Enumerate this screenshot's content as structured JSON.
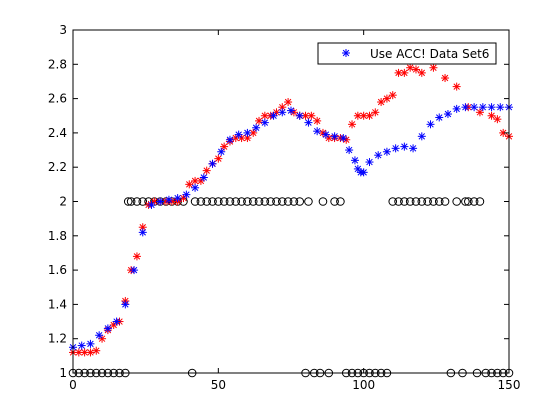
{
  "chart_data": {
    "type": "scatter",
    "title": "",
    "xlabel": "",
    "ylabel": "",
    "xlim": [
      0,
      150
    ],
    "ylim": [
      1,
      3
    ],
    "x_ticks": [
      0,
      50,
      100,
      150
    ],
    "x_tick_labels": [
      "0",
      "50",
      "100",
      "150"
    ],
    "y_ticks": [
      1,
      1.2,
      1.4,
      1.6,
      1.8,
      2,
      2.2,
      2.4,
      2.6,
      2.8,
      3
    ],
    "y_tick_labels": [
      "1",
      "1.2",
      "1.4",
      "1.6",
      "1.8",
      "2",
      "2.2",
      "2.4",
      "2.6",
      "2.8",
      "3"
    ],
    "grid": false,
    "legend": {
      "position": "top-right",
      "entries": [
        "Use ACC! Data Set6"
      ]
    },
    "series": [
      {
        "name": "Use ACC! Data Set6",
        "marker": "asterisk",
        "color": "#0000ff",
        "x": [
          0,
          3,
          6,
          9,
          12,
          15,
          18,
          21,
          24,
          27,
          30,
          33,
          36,
          39,
          42,
          45,
          48,
          51,
          54,
          57,
          60,
          63,
          66,
          69,
          72,
          75,
          78,
          81,
          84,
          87,
          90,
          93,
          95,
          97,
          98,
          99,
          100,
          102,
          105,
          108,
          111,
          114,
          117,
          120,
          123,
          126,
          129,
          132,
          135,
          138,
          141,
          144,
          147,
          150
        ],
        "y": [
          1.15,
          1.16,
          1.17,
          1.22,
          1.26,
          1.3,
          1.4,
          1.6,
          1.82,
          1.98,
          2.0,
          2.01,
          2.02,
          2.04,
          2.08,
          2.14,
          2.22,
          2.29,
          2.36,
          2.39,
          2.4,
          2.43,
          2.46,
          2.5,
          2.52,
          2.53,
          2.5,
          2.46,
          2.41,
          2.39,
          2.38,
          2.37,
          2.3,
          2.24,
          2.19,
          2.17,
          2.17,
          2.23,
          2.27,
          2.29,
          2.31,
          2.32,
          2.31,
          2.38,
          2.45,
          2.49,
          2.51,
          2.54,
          2.55,
          2.55,
          2.55,
          2.55,
          2.55,
          2.55
        ]
      },
      {
        "name": "",
        "marker": "asterisk",
        "color": "#ff0000",
        "x": [
          0,
          2,
          4,
          6,
          8,
          10,
          12,
          14,
          16,
          18,
          20,
          22,
          24,
          26,
          28,
          30,
          32,
          34,
          36,
          38,
          40,
          42,
          44,
          46,
          48,
          50,
          52,
          54,
          56,
          58,
          60,
          62,
          64,
          66,
          68,
          70,
          72,
          74,
          76,
          78,
          80,
          82,
          84,
          86,
          88,
          90,
          92,
          94,
          96,
          98,
          100,
          102,
          104,
          106,
          108,
          110,
          112,
          114,
          116,
          118,
          120,
          124,
          128,
          132,
          136,
          140,
          144,
          146,
          148,
          150
        ],
        "y": [
          1.12,
          1.12,
          1.12,
          1.12,
          1.13,
          1.2,
          1.25,
          1.28,
          1.3,
          1.42,
          1.6,
          1.68,
          1.85,
          1.98,
          2.0,
          2.0,
          2.0,
          2.0,
          2.0,
          2.02,
          2.1,
          2.12,
          2.12,
          2.18,
          2.22,
          2.25,
          2.32,
          2.35,
          2.37,
          2.37,
          2.37,
          2.4,
          2.47,
          2.5,
          2.5,
          2.52,
          2.55,
          2.58,
          2.52,
          2.5,
          2.5,
          2.5,
          2.47,
          2.4,
          2.37,
          2.37,
          2.37,
          2.36,
          2.45,
          2.5,
          2.5,
          2.5,
          2.52,
          2.58,
          2.6,
          2.62,
          2.75,
          2.75,
          2.78,
          2.77,
          2.75,
          2.78,
          2.72,
          2.67,
          2.55,
          2.52,
          2.5,
          2.48,
          2.4,
          2.38
        ]
      },
      {
        "name": "",
        "marker": "circle",
        "color": "#000000",
        "x": [
          0,
          2,
          4,
          6,
          8,
          10,
          12,
          14,
          16,
          18,
          19,
          20,
          22,
          24,
          26,
          28,
          30,
          32,
          34,
          36,
          38,
          41,
          42,
          44,
          46,
          48,
          50,
          52,
          54,
          56,
          58,
          60,
          62,
          64,
          66,
          68,
          70,
          72,
          74,
          76,
          78,
          80,
          81,
          83,
          85,
          86,
          88,
          90,
          92,
          94,
          96,
          98,
          100,
          102,
          104,
          106,
          108,
          110,
          112,
          114,
          116,
          118,
          120,
          122,
          124,
          126,
          128,
          130,
          132,
          134,
          135,
          136,
          138,
          139,
          140,
          142,
          144,
          146,
          148,
          150
        ],
        "y": [
          1,
          1,
          1,
          1,
          1,
          1,
          1,
          1,
          1,
          1,
          2,
          2,
          2,
          2,
          2,
          2,
          2,
          2,
          2,
          2,
          2,
          1,
          2,
          2,
          2,
          2,
          2,
          2,
          2,
          2,
          2,
          2,
          2,
          2,
          2,
          2,
          2,
          2,
          2,
          2,
          2,
          1,
          2,
          1,
          1,
          2,
          1,
          2,
          2,
          1,
          1,
          1,
          1,
          1,
          1,
          1,
          1,
          2,
          2,
          2,
          2,
          2,
          2,
          2,
          2,
          2,
          2,
          1,
          2,
          1,
          2,
          2,
          2,
          1,
          2,
          1,
          1,
          1,
          1,
          1
        ]
      }
    ]
  }
}
